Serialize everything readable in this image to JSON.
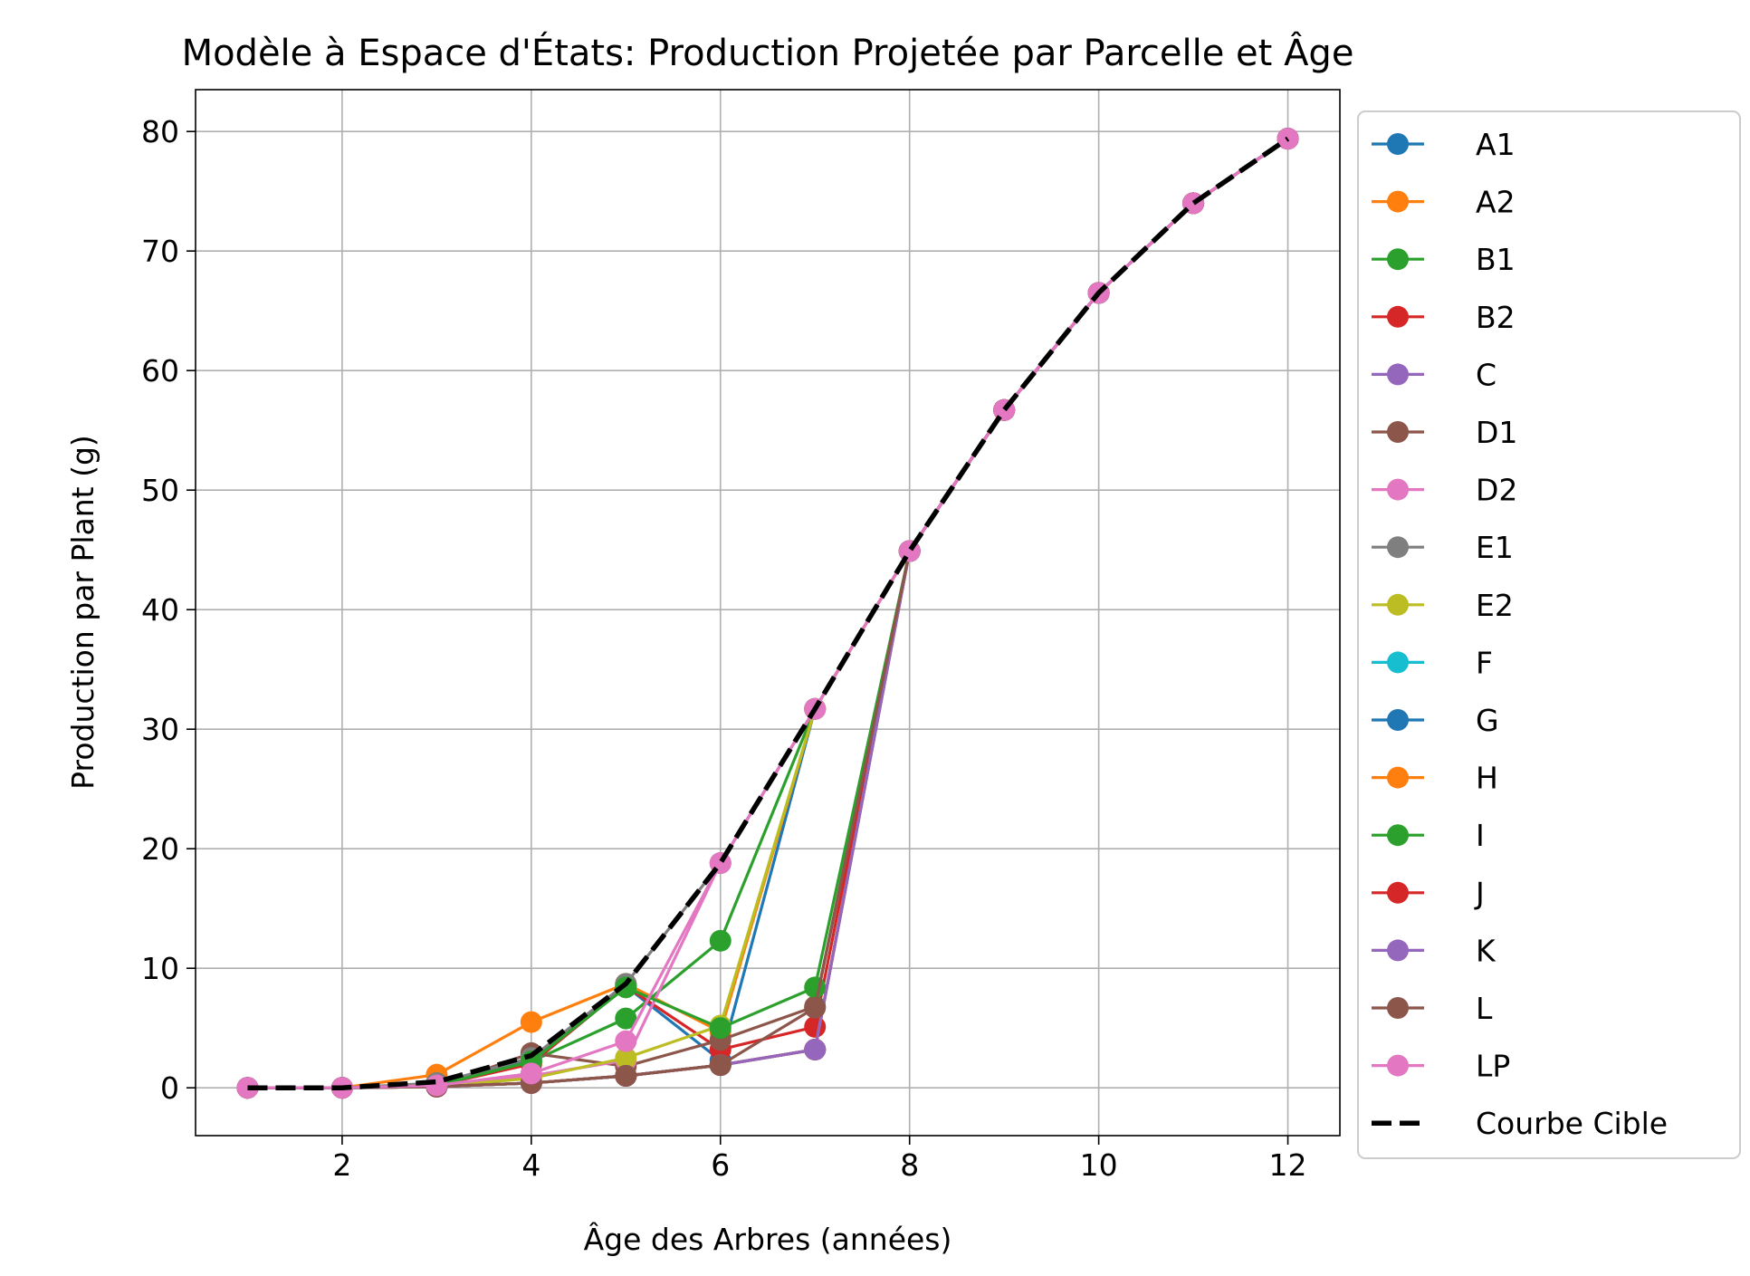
{
  "chart_data": {
    "type": "line",
    "title": "Modèle à Espace d'États: Production Projetée par Parcelle et Âge",
    "xlabel": "Âge des Arbres (années)",
    "ylabel": "Production par Plant (g)",
    "xlim": [
      0.45,
      12.55
    ],
    "ylim": [
      -4,
      83.5
    ],
    "xticks": [
      2,
      4,
      6,
      8,
      10,
      12
    ],
    "yticks": [
      0,
      10,
      20,
      30,
      40,
      50,
      60,
      70,
      80
    ],
    "grid": true,
    "legend_position": "outside-right",
    "series": [
      {
        "name": "A1",
        "color": "#1f77b4",
        "style": "solid-marker",
        "x": [
          1,
          2,
          3,
          4,
          5,
          6,
          7,
          8,
          9,
          10,
          11,
          12
        ],
        "y": [
          0,
          0,
          0.3,
          2.3,
          8.5,
          2.3,
          31.7,
          44.9,
          56.7,
          66.5,
          74,
          79.4
        ]
      },
      {
        "name": "A2",
        "color": "#ff7f0e",
        "style": "solid-marker",
        "x": [
          1,
          2,
          3,
          4,
          5,
          6,
          7,
          8,
          9,
          10,
          11,
          12
        ],
        "y": [
          0,
          0,
          1.1,
          5.5,
          8.7,
          4.7,
          31.7,
          44.9,
          56.7,
          66.5,
          74,
          79.4
        ]
      },
      {
        "name": "B1",
        "color": "#2ca02c",
        "style": "solid-marker",
        "x": [
          1,
          2,
          3,
          4,
          5,
          6,
          7,
          8,
          9,
          10,
          11,
          12
        ],
        "y": [
          0,
          0,
          0.2,
          2.2,
          5.8,
          12.3,
          31.7,
          44.9,
          56.7,
          66.5,
          74,
          79.4
        ]
      },
      {
        "name": "B2",
        "color": "#d62728",
        "style": "solid-marker",
        "x": [
          1,
          2,
          3,
          4,
          5,
          6,
          7,
          8,
          9,
          10,
          11,
          12
        ],
        "y": [
          0,
          0,
          0.2,
          2,
          8.5,
          3.2,
          5.1,
          44.9,
          56.7,
          66.5,
          74,
          79.4
        ]
      },
      {
        "name": "C",
        "color": "#9467bd",
        "style": "solid-marker",
        "x": [
          1,
          2,
          3,
          4,
          5,
          6,
          7,
          8,
          9,
          10,
          11,
          12
        ],
        "y": [
          0,
          0,
          0.1,
          0.4,
          1,
          1.9,
          3.2,
          44.9,
          56.7,
          66.5,
          74,
          79.4
        ]
      },
      {
        "name": "D1",
        "color": "#8c564b",
        "style": "solid-marker",
        "x": [
          1,
          2,
          3,
          4,
          5,
          6,
          7,
          8,
          9,
          10,
          11,
          12
        ],
        "y": [
          0,
          0,
          0.1,
          2.9,
          1.8,
          4,
          6.8,
          44.9,
          56.7,
          66.5,
          74,
          79.4
        ]
      },
      {
        "name": "D2",
        "color": "#e377c2",
        "style": "solid-marker",
        "x": [
          1,
          2,
          3,
          4,
          5,
          6,
          7,
          8,
          9,
          10,
          11,
          12
        ],
        "y": [
          0,
          0,
          0.2,
          1,
          2.3,
          18.8,
          31.7,
          44.9,
          56.7,
          66.5,
          74,
          79.4
        ]
      },
      {
        "name": "E1",
        "color": "#7f7f7f",
        "style": "solid-marker",
        "x": [
          1,
          2,
          3,
          4,
          5,
          6,
          7,
          8,
          9,
          10,
          11,
          12
        ],
        "y": [
          0,
          0,
          0.4,
          2.5,
          8.7,
          18.8,
          31.7,
          44.9,
          56.7,
          66.5,
          74,
          79.4
        ]
      },
      {
        "name": "E2",
        "color": "#bcbd22",
        "style": "solid-marker",
        "x": [
          1,
          2,
          3,
          4,
          5,
          6,
          7,
          8,
          9,
          10,
          11,
          12
        ],
        "y": [
          0,
          0,
          0.1,
          0.8,
          2.5,
          5.2,
          31.7,
          44.9,
          56.7,
          66.5,
          74,
          79.4
        ]
      },
      {
        "name": "F",
        "color": "#17becf",
        "style": "solid-marker",
        "x": [
          1,
          2,
          3,
          4,
          5,
          6,
          7,
          8,
          9,
          10,
          11,
          12
        ],
        "y": [
          0,
          0,
          0.1,
          0.4,
          1,
          1.9,
          3.2,
          44.9,
          56.7,
          66.5,
          74,
          79.4
        ]
      },
      {
        "name": "G",
        "color": "#1f77b4",
        "style": "solid-marker",
        "x": [
          1,
          2,
          3,
          4,
          5,
          6,
          7,
          8,
          9,
          10,
          11,
          12
        ],
        "y": [
          0,
          0,
          0.1,
          0.4,
          1,
          1.9,
          3.2,
          44.9,
          56.7,
          66.5,
          74,
          79.4
        ]
      },
      {
        "name": "H",
        "color": "#ff7f0e",
        "style": "solid-marker",
        "x": [
          1,
          2,
          3,
          4,
          5,
          6,
          7,
          8,
          9,
          10,
          11,
          12
        ],
        "y": [
          0,
          0,
          0.1,
          0.4,
          1,
          1.9,
          3.2,
          44.9,
          56.7,
          66.5,
          74,
          79.4
        ]
      },
      {
        "name": "I",
        "color": "#2ca02c",
        "style": "solid-marker",
        "x": [
          1,
          2,
          3,
          4,
          5,
          6,
          7,
          8,
          9,
          10,
          11,
          12
        ],
        "y": [
          0,
          0,
          0.2,
          2.2,
          8.4,
          5,
          8.4,
          44.9,
          56.7,
          66.5,
          74,
          79.4
        ]
      },
      {
        "name": "J",
        "color": "#d62728",
        "style": "solid-marker",
        "x": [
          1,
          2,
          3,
          4,
          5,
          6,
          7,
          8,
          9,
          10,
          11,
          12
        ],
        "y": [
          0,
          0,
          0.1,
          0.4,
          1,
          1.9,
          3.2,
          44.9,
          56.7,
          66.5,
          74,
          79.4
        ]
      },
      {
        "name": "K",
        "color": "#9467bd",
        "style": "solid-marker",
        "x": [
          1,
          2,
          3,
          4,
          5,
          6,
          7,
          8,
          9,
          10,
          11,
          12
        ],
        "y": [
          0,
          0,
          0.1,
          0.4,
          1,
          1.9,
          3.2,
          44.9,
          56.7,
          66.5,
          74,
          79.4
        ]
      },
      {
        "name": "L",
        "color": "#8c564b",
        "style": "solid-marker",
        "x": [
          1,
          2,
          3,
          4,
          5,
          6,
          7,
          8,
          9,
          10,
          11,
          12
        ],
        "y": [
          0,
          0,
          0.1,
          0.4,
          1,
          1.9,
          6.7,
          44.9,
          56.7,
          66.5,
          74,
          79.4
        ]
      },
      {
        "name": "LP",
        "color": "#e377c2",
        "style": "solid-marker",
        "x": [
          1,
          2,
          3,
          4,
          5,
          6,
          7,
          8,
          9,
          10,
          11,
          12
        ],
        "y": [
          0,
          0,
          0.2,
          1.2,
          3.9,
          18.8,
          31.7,
          44.9,
          56.7,
          66.5,
          74,
          79.4
        ]
      },
      {
        "name": "Courbe Cible",
        "color": "#000000",
        "style": "dashed",
        "x": [
          1,
          2,
          3,
          4,
          5,
          6,
          7,
          8,
          9,
          10,
          11,
          12
        ],
        "y": [
          0,
          0,
          0.5,
          2.7,
          8.7,
          18.8,
          31.7,
          44.9,
          56.7,
          66.5,
          74,
          79.4
        ]
      }
    ]
  }
}
